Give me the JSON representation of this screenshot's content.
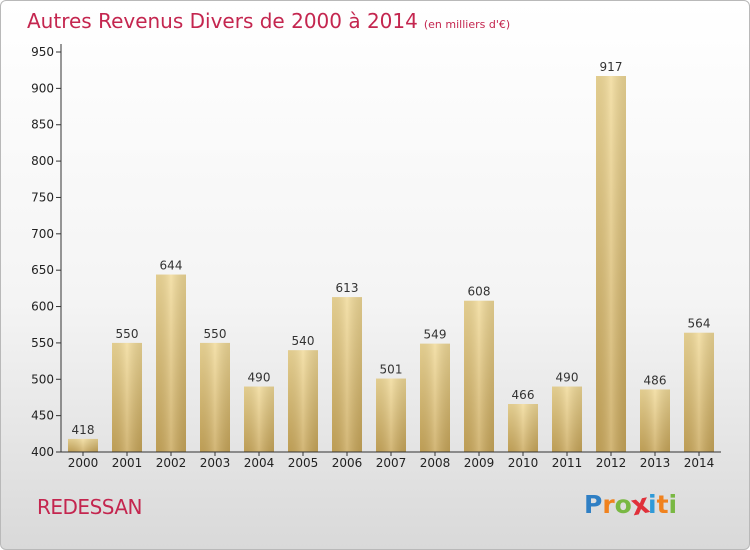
{
  "chart_data": {
    "type": "bar",
    "title": "Autres Revenus Divers de 2000 à 2014",
    "subtitle": "(en milliers d'€)",
    "categories": [
      "2000",
      "2001",
      "2002",
      "2003",
      "2004",
      "2005",
      "2006",
      "2007",
      "2008",
      "2009",
      "2010",
      "2011",
      "2012",
      "2013",
      "2014"
    ],
    "values": [
      418,
      550,
      644,
      550,
      490,
      540,
      613,
      501,
      549,
      608,
      466,
      490,
      917,
      486,
      564
    ],
    "ylim": [
      400,
      950
    ],
    "yticks": [
      400,
      450,
      500,
      550,
      600,
      650,
      700,
      750,
      800,
      850,
      900,
      950
    ],
    "grid": false,
    "bar_color": "#e3c27a"
  },
  "footer": {
    "town": "REDESSAN",
    "logo": {
      "letters": [
        "P",
        "r",
        "o",
        "x",
        "i",
        "t",
        "i"
      ],
      "colors": [
        "#2f7fc4",
        "#f0821e",
        "#79b843",
        "#e0303a",
        "#2f9ad8",
        "#f0821e",
        "#79b843"
      ]
    }
  },
  "colors": {
    "title": "#c4264f",
    "axis": "#333333"
  }
}
